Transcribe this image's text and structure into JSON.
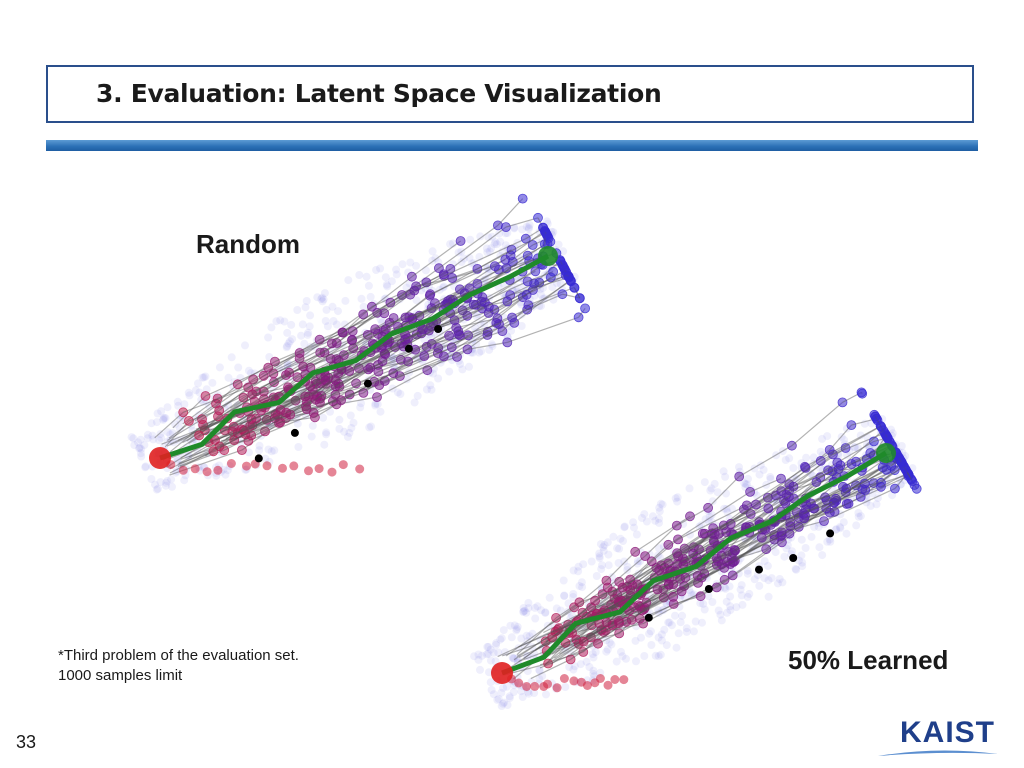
{
  "slide": {
    "title": "3. Evaluation: Latent Space Visualization",
    "page_number": "33",
    "logo_text": "KAIST"
  },
  "panels": {
    "random": {
      "label": "Random"
    },
    "learned": {
      "label": "50% Learned"
    }
  },
  "footnote": {
    "line1": "*Third problem of the evaluation set.",
    "line2": "1000 samples limit"
  },
  "colors": {
    "title_border": "#2a4f8c",
    "title_bar": "#2a6fb5",
    "start_point": "#e02020",
    "goal_point": "#1f8a2a",
    "best_path": "#1f8a2a",
    "state_blue": "#3a2ad0",
    "state_purple": "#7a1a8a",
    "state_red": "#d02040",
    "terminal": "#000000",
    "logo": "#1f3f8a"
  }
}
